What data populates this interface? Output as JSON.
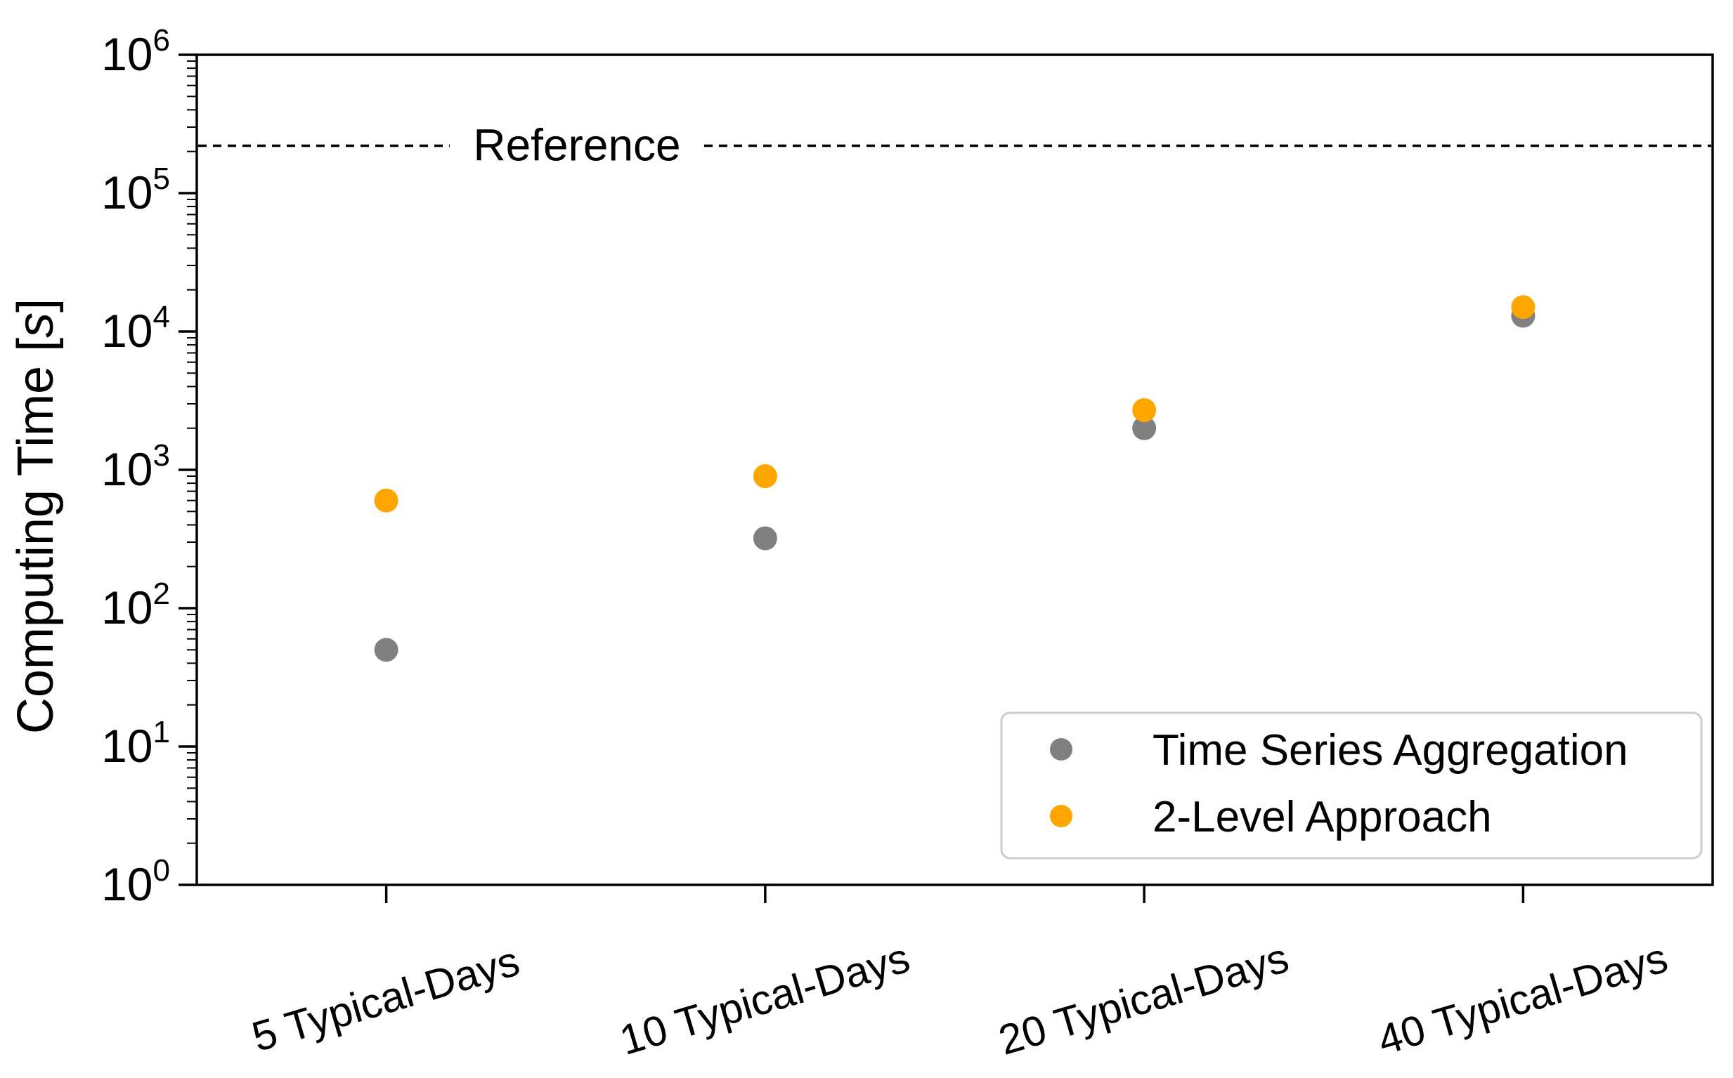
{
  "figure": {
    "background": "#ffffff"
  },
  "chart_data": {
    "type": "scatter",
    "title": "",
    "ylabel": "Computing Time [s]",
    "ylabel_parts": {
      "prefix": "Computing Time [",
      "unit": "s",
      "suffix": "]"
    },
    "yscale": "log",
    "ylim": [
      1,
      1000000
    ],
    "ytick_exponents": [
      0,
      1,
      2,
      3,
      4,
      5,
      6
    ],
    "ytick_labels": [
      "10⁰",
      "10¹",
      "10²",
      "10³",
      "10⁴",
      "10⁵",
      "10⁶"
    ],
    "categories": [
      "5 Typical-Days",
      "10 Typical-Days",
      "20 Typical-Days",
      "40 Typical-Days"
    ],
    "series": [
      {
        "name": "Time Series Aggregation",
        "color": "#808080",
        "values": [
          50,
          320,
          2000,
          13000
        ]
      },
      {
        "name": "2-Level Approach",
        "color": "#FFA500",
        "values": [
          600,
          900,
          2700,
          15000
        ]
      }
    ],
    "reference_line": {
      "label": "Reference",
      "value": 220000,
      "color": "#000000",
      "style": "dashed"
    },
    "legend": {
      "position": "lower right",
      "items": [
        "Time Series Aggregation",
        "2-Level Approach"
      ]
    },
    "axis_color": "#000000",
    "grid": false,
    "marker": "circle"
  }
}
